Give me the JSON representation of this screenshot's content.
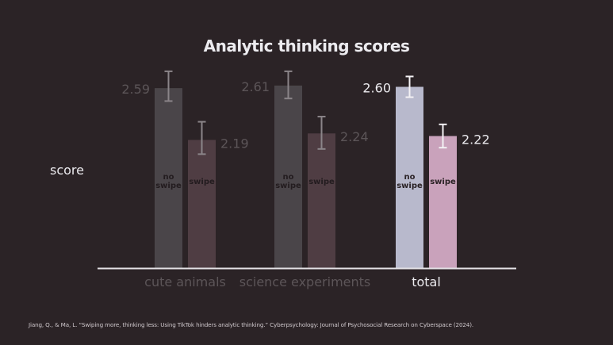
{
  "chart_data": {
    "type": "bar",
    "title": "Analytic thinking scores",
    "ylabel": "score",
    "xlabel": "",
    "ylim": [
      1.2,
      2.75
    ],
    "grid": false,
    "categories": [
      "cute animals",
      "science experiments",
      "total"
    ],
    "highlighted_category": "total",
    "series": [
      {
        "name": "no swipe",
        "bar_label": [
          "no",
          "swipe"
        ],
        "values": [
          2.59,
          2.61,
          2.6
        ],
        "value_labels": [
          "2.59",
          "2.61",
          "2.60"
        ]
      },
      {
        "name": "swipe",
        "bar_label": [
          "swipe"
        ],
        "values": [
          2.19,
          2.24,
          2.22
        ],
        "value_labels": [
          "2.19",
          "2.24",
          "2.22"
        ]
      }
    ],
    "error_bars": [
      [
        [
          2.49,
          2.72
        ],
        [
          2.51,
          2.72
        ],
        [
          2.52,
          2.68
        ]
      ],
      [
        [
          2.08,
          2.33
        ],
        [
          2.12,
          2.37
        ],
        [
          2.13,
          2.31
        ]
      ]
    ]
  },
  "citation": "Jiang, Q., & Ma, L. “Swiping more, thinking less: Using TikTok hinders analytic thinking.” Cyberpsychology: Journal of Psychosocial Research on Cyberspace (2024).",
  "colors": {
    "background": "#2b2326",
    "no_swipe_dim": "#4a4549",
    "swipe_dim": "#4f3d43",
    "no_swipe_active": "#b8b9cc",
    "swipe_active": "#c9a2bb",
    "dim_text": "#5c5558",
    "active_text": "#ecebef",
    "axis": "#e4e2e6"
  }
}
